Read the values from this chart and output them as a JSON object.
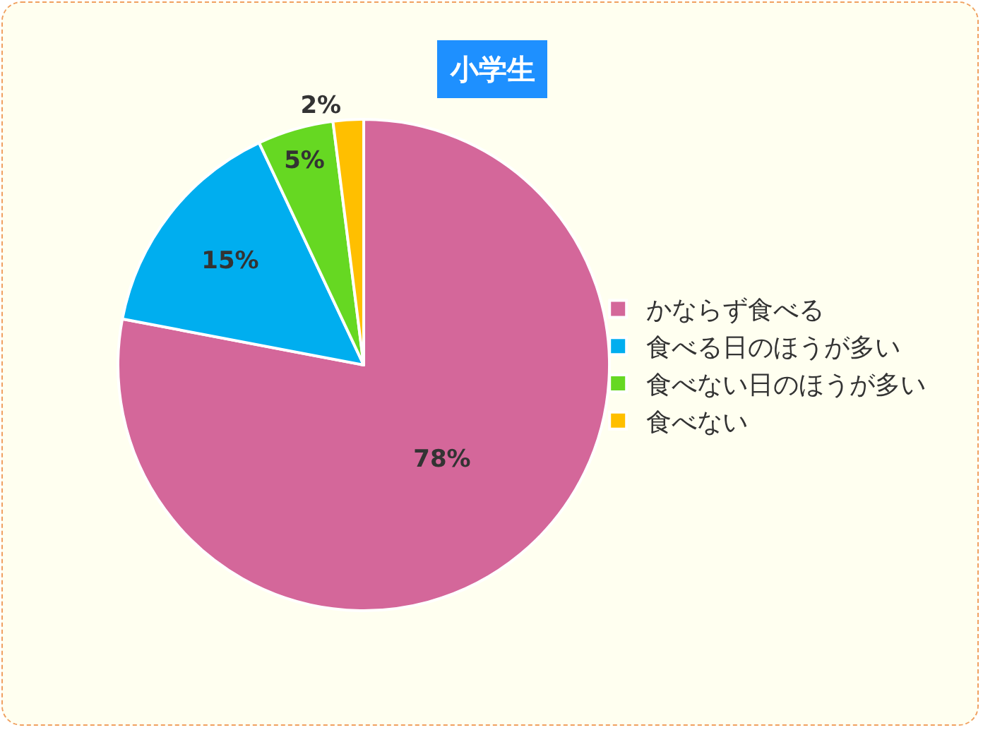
{
  "chart_data": {
    "type": "pie",
    "title": "小学生",
    "categories": [
      "かならず食べる",
      "食べる日のほうが多い",
      "食べない日のほうが多い",
      "食べない"
    ],
    "values": [
      78,
      15,
      5,
      2
    ],
    "colors": [
      "#d4679a",
      "#00aeef",
      "#66d822",
      "#ffbf00"
    ],
    "value_labels": [
      "78%",
      "15%",
      "5%",
      "2%"
    ],
    "legend": "right"
  }
}
